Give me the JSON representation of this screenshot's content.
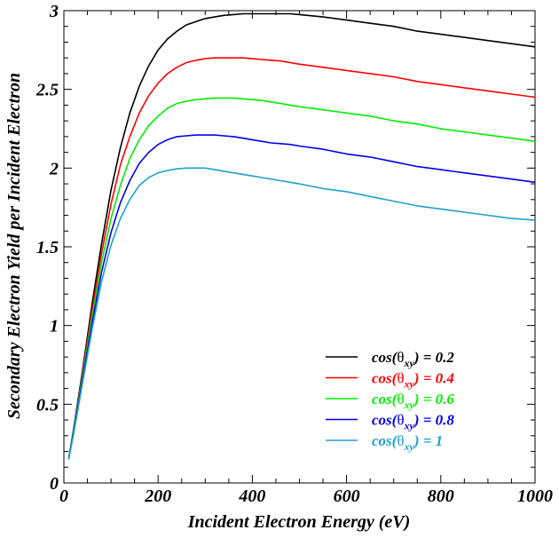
{
  "chart_data": {
    "type": "line",
    "title": "",
    "xlabel": "Incident Electron Energy (eV)",
    "ylabel": "Secondary Electron Yield per Incident Electron",
    "xlim": [
      0,
      1000
    ],
    "ylim": [
      0,
      3
    ],
    "x_ticks": [
      0,
      200,
      400,
      600,
      800,
      1000
    ],
    "x_tick_labels": [
      "0",
      "200",
      "400",
      "600",
      "800",
      "1000"
    ],
    "y_ticks": [
      0,
      0.5,
      1,
      1.5,
      2,
      2.5,
      3
    ],
    "y_tick_labels": [
      "0",
      "0.5",
      "1",
      "1.5",
      "2",
      "2.5",
      "3"
    ],
    "grid": false,
    "legend_position": "bottom-right",
    "x": [
      10,
      20,
      40,
      60,
      80,
      100,
      120,
      140,
      160,
      180,
      200,
      220,
      240,
      260,
      280,
      300,
      320,
      340,
      360,
      380,
      400,
      420,
      440,
      460,
      480,
      500,
      550,
      600,
      650,
      700,
      750,
      800,
      850,
      900,
      950,
      1000
    ],
    "series": [
      {
        "name_prefix": "cos(",
        "name_symbol": "θ",
        "name_sub": "xy",
        "name_suffix": ") = 0.2",
        "color": "#000000",
        "values": [
          0.15,
          0.33,
          0.72,
          1.14,
          1.52,
          1.86,
          2.13,
          2.35,
          2.52,
          2.65,
          2.75,
          2.82,
          2.87,
          2.91,
          2.93,
          2.95,
          2.96,
          2.97,
          2.975,
          2.98,
          2.98,
          2.98,
          2.98,
          2.98,
          2.98,
          2.975,
          2.96,
          2.94,
          2.92,
          2.9,
          2.87,
          2.85,
          2.83,
          2.81,
          2.79,
          2.77
        ]
      },
      {
        "name_prefix": "cos(",
        "name_symbol": "θ",
        "name_sub": "xy",
        "name_suffix": ") = 0.4",
        "color": "#ff0000",
        "values": [
          0.15,
          0.32,
          0.7,
          1.1,
          1.46,
          1.77,
          2.02,
          2.2,
          2.35,
          2.46,
          2.54,
          2.6,
          2.64,
          2.67,
          2.685,
          2.695,
          2.7,
          2.7,
          2.7,
          2.7,
          2.695,
          2.69,
          2.685,
          2.68,
          2.67,
          2.66,
          2.64,
          2.62,
          2.6,
          2.58,
          2.55,
          2.53,
          2.51,
          2.49,
          2.47,
          2.45
        ]
      },
      {
        "name_prefix": "cos(",
        "name_symbol": "θ",
        "name_sub": "xy",
        "name_suffix": ") = 0.6",
        "color": "#00ee00",
        "values": [
          0.15,
          0.32,
          0.68,
          1.06,
          1.4,
          1.68,
          1.89,
          2.06,
          2.18,
          2.27,
          2.33,
          2.38,
          2.41,
          2.425,
          2.435,
          2.44,
          2.445,
          2.445,
          2.445,
          2.44,
          2.435,
          2.43,
          2.42,
          2.41,
          2.4,
          2.39,
          2.37,
          2.35,
          2.33,
          2.3,
          2.28,
          2.25,
          2.23,
          2.21,
          2.19,
          2.17
        ]
      },
      {
        "name_prefix": "cos(",
        "name_symbol": "θ",
        "name_sub": "xy",
        "name_suffix": ") = 0.8",
        "color": "#0000ee",
        "values": [
          0.15,
          0.31,
          0.66,
          1.02,
          1.34,
          1.59,
          1.78,
          1.92,
          2.03,
          2.1,
          2.15,
          2.18,
          2.2,
          2.205,
          2.21,
          2.21,
          2.21,
          2.205,
          2.2,
          2.19,
          2.18,
          2.17,
          2.16,
          2.155,
          2.15,
          2.14,
          2.12,
          2.09,
          2.07,
          2.04,
          2.01,
          1.99,
          1.97,
          1.95,
          1.93,
          1.91
        ]
      },
      {
        "name_prefix": "cos(",
        "name_symbol": "θ",
        "name_sub": "xy",
        "name_suffix": ") = 1",
        "color": "#1f9fd0",
        "values": [
          0.15,
          0.3,
          0.64,
          0.98,
          1.28,
          1.51,
          1.68,
          1.8,
          1.89,
          1.94,
          1.97,
          1.985,
          1.995,
          2.0,
          2.0,
          2.0,
          1.99,
          1.98,
          1.97,
          1.96,
          1.95,
          1.94,
          1.93,
          1.92,
          1.91,
          1.9,
          1.87,
          1.85,
          1.82,
          1.79,
          1.76,
          1.74,
          1.72,
          1.7,
          1.68,
          1.67
        ]
      }
    ]
  }
}
